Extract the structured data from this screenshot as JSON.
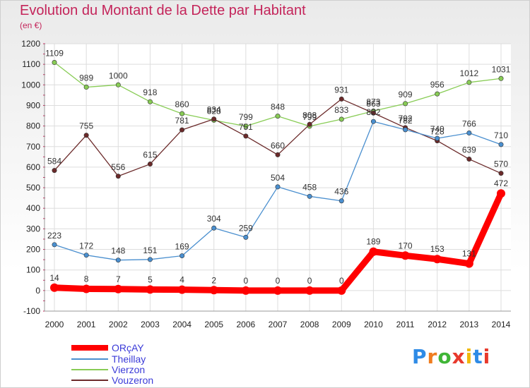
{
  "title": "Evolution du Montant de la Dette par Habitant",
  "subtitle": "(en €)",
  "brand": "Proxiti",
  "brand_colors": [
    "#2e8be6",
    "#f07c1e",
    "#3fb536",
    "#e8392c",
    "#f0b90b",
    "#2e8be6",
    "#e8392c"
  ],
  "chart_data": {
    "type": "line",
    "x": [
      "2000",
      "2001",
      "2002",
      "2003",
      "2004",
      "2005",
      "2006",
      "2007",
      "2008",
      "2009",
      "2010",
      "2011",
      "2012",
      "2013",
      "2014"
    ],
    "ylim": [
      -100,
      1200
    ],
    "yticks": [
      "-100",
      "0",
      "100",
      "200",
      "300",
      "400",
      "500",
      "600",
      "700",
      "800",
      "900",
      "1000",
      "1100",
      "1200"
    ],
    "grid": true,
    "legend": "bottom-left",
    "series": [
      {
        "name": "Vierzon",
        "color": "#88cc55",
        "values": [
          1109,
          989,
          1000,
          918,
          860,
          828,
          799,
          848,
          799,
          833,
          873,
          909,
          956,
          1012,
          1031
        ],
        "labels": [
          "1109",
          "989",
          "1000",
          "918",
          "860",
          "828",
          "799",
          "848",
          "799",
          "833",
          "873",
          "909",
          "956",
          "1012",
          "1031"
        ]
      },
      {
        "name": "Vouzeron",
        "color": "#6b2a2a",
        "values": [
          584,
          755,
          556,
          615,
          781,
          834,
          751,
          660,
          808,
          931,
          863,
          792,
          728,
          639,
          570
        ],
        "labels": [
          "584",
          "755",
          "556",
          "615",
          "781",
          "834",
          "751",
          "660",
          "808",
          "931",
          "863",
          "792",
          "728",
          "639",
          "570"
        ]
      },
      {
        "name": "Theillay",
        "color": "#4a8fcf",
        "values": [
          223,
          172,
          148,
          151,
          169,
          304,
          259,
          504,
          458,
          436,
          822,
          782,
          740,
          766,
          710
        ],
        "labels": [
          "223",
          "172",
          "148",
          "151",
          "169",
          "304",
          "259",
          "504",
          "458",
          "436",
          "822",
          "782",
          "740",
          "766",
          "710"
        ]
      },
      {
        "name": "ORçAY",
        "color": "#ff0000",
        "values": [
          14,
          8,
          7,
          5,
          4,
          2,
          0,
          0,
          0,
          0,
          189,
          170,
          153,
          131,
          472
        ],
        "labels": [
          "14",
          "8",
          "7",
          "5",
          "4",
          "2",
          "0",
          "0",
          "0",
          "0",
          "189",
          "170",
          "153",
          "131",
          "472"
        ]
      }
    ],
    "legend_order": [
      "ORçAY",
      "Theillay",
      "Vierzon",
      "Vouzeron"
    ]
  }
}
